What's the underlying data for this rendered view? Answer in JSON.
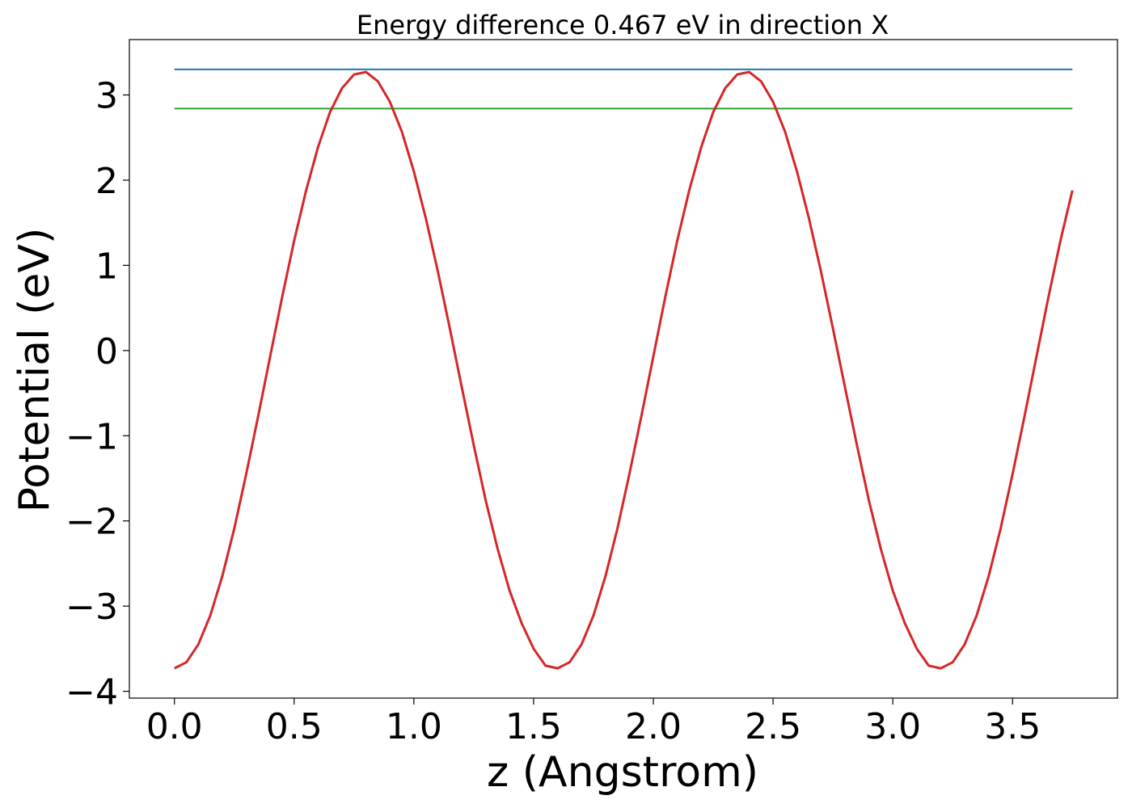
{
  "chart_data": {
    "type": "line",
    "title": "Energy difference 0.467 eV in direction X",
    "xlabel": "z (Angstrom)",
    "ylabel": "Potential (eV)",
    "xlim": [
      -0.188,
      3.938
    ],
    "ylim": [
      -4.08,
      3.65
    ],
    "xticks": [
      0.0,
      0.5,
      1.0,
      1.5,
      2.0,
      2.5,
      3.0,
      3.5
    ],
    "xtick_labels": [
      "0.0",
      "0.5",
      "1.0",
      "1.5",
      "2.0",
      "2.5",
      "3.0",
      "3.5"
    ],
    "yticks": [
      -4,
      -3,
      -2,
      -1,
      0,
      1,
      2,
      3
    ],
    "ytick_labels": [
      "−4",
      "−3",
      "−2",
      "−1",
      "0",
      "1",
      "2",
      "3"
    ],
    "grid": false,
    "legend": false,
    "series": [
      {
        "color": "#1f77b4",
        "x": [
          0.0,
          3.75
        ],
        "y": [
          3.3,
          3.3
        ]
      },
      {
        "color": "#2ca02c",
        "x": [
          0.0,
          3.75
        ],
        "y": [
          2.84,
          2.84
        ]
      },
      {
        "color": "#d62728",
        "x": [
          0.0,
          0.05,
          0.1,
          0.15,
          0.2,
          0.25,
          0.3,
          0.35,
          0.4,
          0.45,
          0.5,
          0.55,
          0.6,
          0.65,
          0.7,
          0.75,
          0.8,
          0.85,
          0.9,
          0.95,
          1.0,
          1.05,
          1.1,
          1.15,
          1.2,
          1.25,
          1.3,
          1.35,
          1.4,
          1.45,
          1.5,
          1.55,
          1.6,
          1.65,
          1.7,
          1.75,
          1.8,
          1.85,
          1.9,
          1.95,
          2.0,
          2.05,
          2.1,
          2.15,
          2.2,
          2.25,
          2.3,
          2.35,
          2.4,
          2.45,
          2.5,
          2.55,
          2.6,
          2.65,
          2.7,
          2.75,
          2.8,
          2.85,
          2.9,
          2.95,
          3.0,
          3.05,
          3.1,
          3.15,
          3.2,
          3.25,
          3.3,
          3.35,
          3.4,
          3.45,
          3.5,
          3.55,
          3.6,
          3.65,
          3.7,
          3.75
        ],
        "y": [
          -3.73,
          -3.66,
          -3.45,
          -3.11,
          -2.65,
          -2.09,
          -1.45,
          -0.77,
          -0.07,
          0.63,
          1.29,
          1.88,
          2.39,
          2.8,
          3.08,
          3.24,
          3.27,
          3.16,
          2.92,
          2.57,
          2.1,
          1.55,
          0.93,
          0.26,
          -0.43,
          -1.11,
          -1.76,
          -2.33,
          -2.82,
          -3.2,
          -3.5,
          -3.7,
          -3.73,
          -3.66,
          -3.45,
          -3.11,
          -2.65,
          -2.09,
          -1.45,
          -0.77,
          -0.07,
          0.63,
          1.29,
          1.88,
          2.39,
          2.8,
          3.08,
          3.24,
          3.27,
          3.16,
          2.92,
          2.57,
          2.1,
          1.55,
          0.93,
          0.26,
          -0.43,
          -1.11,
          -1.76,
          -2.33,
          -2.82,
          -3.2,
          -3.5,
          -3.7,
          -3.73,
          -3.66,
          -3.45,
          -3.11,
          -2.65,
          -2.09,
          -1.45,
          -0.77,
          -0.07,
          0.63,
          1.29,
          1.88
        ]
      }
    ]
  }
}
